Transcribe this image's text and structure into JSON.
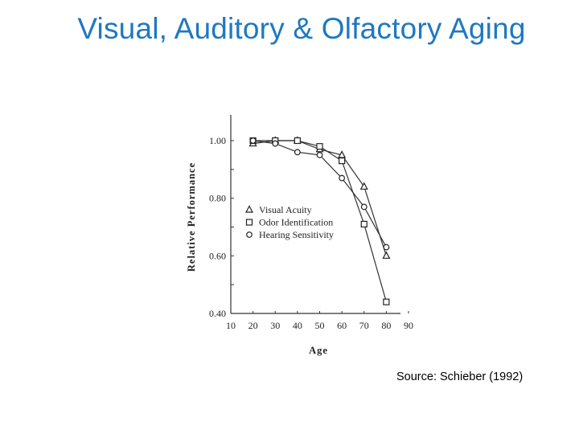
{
  "slide": {
    "title": "Visual, Auditory & Olfactory Aging",
    "source": "Source: Schieber (1992)"
  },
  "chart_data": {
    "type": "line",
    "xlabel": "Age",
    "ylabel": "Relative Performance",
    "xlim": [
      10,
      90
    ],
    "ylim": [
      0.4,
      1.05
    ],
    "x_ticks": [
      "10",
      "20",
      "30",
      "40",
      "50",
      "60",
      "70",
      "80",
      "90"
    ],
    "y_ticks": [
      "0.40",
      "0.60",
      "0.80",
      "1.00"
    ],
    "grid": false,
    "legend_position": "inside-left",
    "series": [
      {
        "name": "Visual Acuity",
        "marker": "triangle",
        "x": [
          20,
          30,
          40,
          50,
          60,
          70,
          80
        ],
        "y": [
          0.99,
          1.0,
          1.0,
          0.97,
          0.95,
          0.84,
          0.6
        ]
      },
      {
        "name": "Odor Identification",
        "marker": "square",
        "x": [
          20,
          30,
          40,
          50,
          60,
          70,
          80
        ],
        "y": [
          1.0,
          1.0,
          1.0,
          0.98,
          0.93,
          0.71,
          0.44
        ]
      },
      {
        "name": "Hearing Sensitivity",
        "marker": "circle",
        "x": [
          20,
          30,
          40,
          50,
          60,
          70,
          80
        ],
        "y": [
          1.0,
          0.99,
          0.96,
          0.95,
          0.87,
          0.77,
          0.63
        ]
      }
    ]
  }
}
